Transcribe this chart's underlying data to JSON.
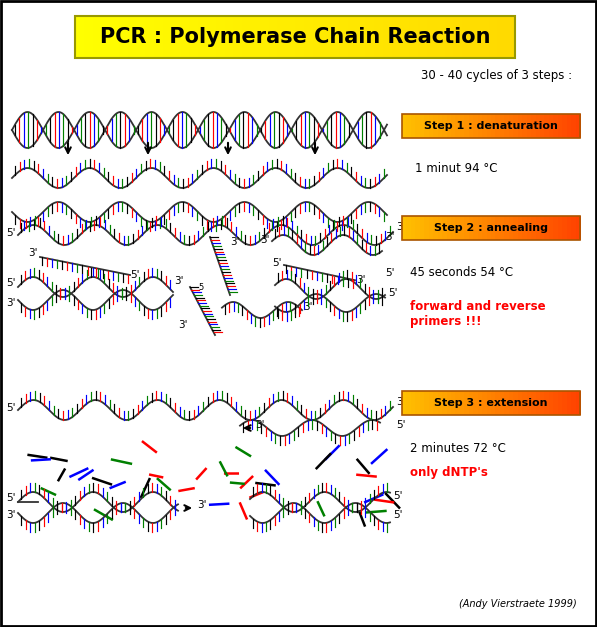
{
  "title": "PCR : Polymerase Chain Reaction",
  "cycles_text": "30 - 40 cycles of 3 steps :",
  "step1_label": "Step 1 : denaturation",
  "step1_detail": "1 minut 94 °C",
  "step2_label": "Step 2 : annealing",
  "step2_detail": "45 seconds 54 °C",
  "step2_detail2": "forward and reverse\nprimers !!!",
  "step3_label": "Step 3 : extension",
  "step3_detail": "2 minutes 72 °C",
  "step3_detail2": "only dNTP's",
  "credit": "(Andy Vierstraete 1999)",
  "bg_color": "#FFFFFF",
  "border_color": "#000000",
  "red_text_color": "#FF0000",
  "dna_colors": [
    "#000000",
    "#FF0000",
    "#0000FF",
    "#008000"
  ]
}
